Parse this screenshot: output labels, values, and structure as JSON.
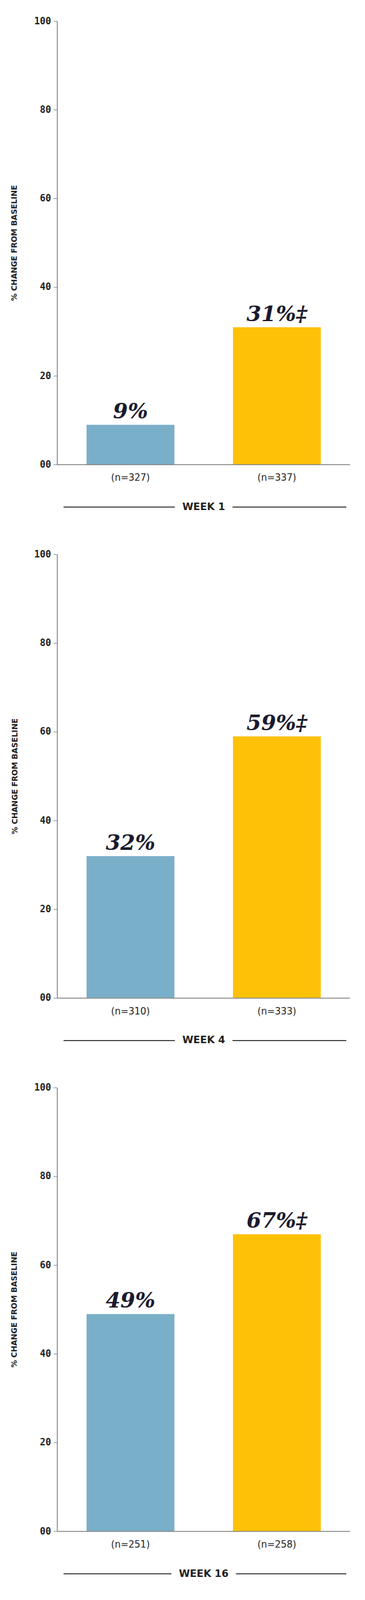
{
  "chart_data": [
    {
      "type": "bar",
      "categories": [
        "(n=327)",
        "(n=337)"
      ],
      "values": [
        9,
        31
      ],
      "value_labels": [
        "9%",
        "31%‡"
      ],
      "colors": [
        "#7aafc9",
        "#ffc107"
      ],
      "y_label": "% CHANGE FROM BASELINE",
      "annotations": [
        "WEEK 1"
      ],
      "ylim": [
        0,
        100
      ],
      "yticks": [
        {
          "value": 0,
          "label": "00"
        },
        20,
        40,
        60,
        80,
        100
      ],
      "grid": false,
      "data_labels": true
    },
    {
      "type": "bar",
      "categories": [
        "(n=310)",
        "(n=333)"
      ],
      "values": [
        32,
        59
      ],
      "value_labels": [
        "32%",
        "59%‡"
      ],
      "colors": [
        "#7aafc9",
        "#ffc107"
      ],
      "y_label": "% CHANGE FROM BASELINE",
      "annotations": [
        "WEEK 4"
      ],
      "ylim": [
        0,
        100
      ],
      "yticks": [
        {
          "value": 0,
          "label": "00"
        },
        20,
        40,
        60,
        80,
        100
      ],
      "grid": false,
      "data_labels": true
    },
    {
      "type": "bar",
      "categories": [
        "(n=251)",
        "(n=258)"
      ],
      "values": [
        49,
        67
      ],
      "value_labels": [
        "49%",
        "67%‡"
      ],
      "colors": [
        "#7aafc9",
        "#ffc107"
      ],
      "y_label": "% CHANGE FROM BASELINE",
      "annotations": [
        "WEEK 16"
      ],
      "ylim": [
        0,
        100
      ],
      "yticks": [
        {
          "value": 0,
          "label": "00"
        },
        20,
        40,
        60,
        80,
        100
      ],
      "grid": false,
      "data_labels": true
    }
  ]
}
